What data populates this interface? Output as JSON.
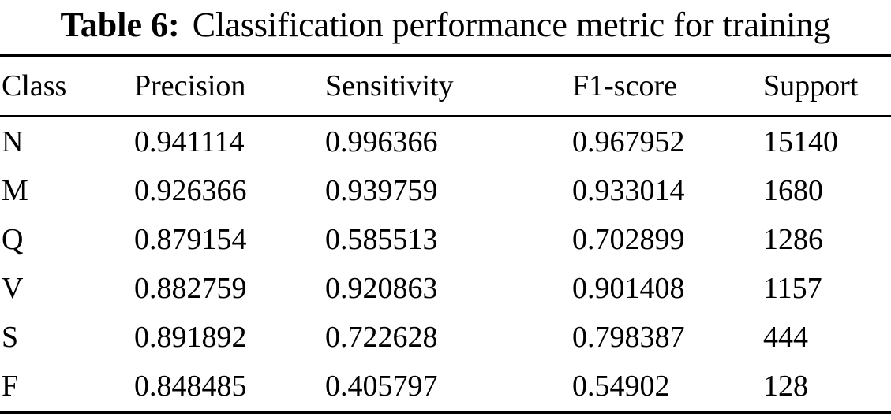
{
  "caption": {
    "label": "Table 6:",
    "text": "Classification performance metric for training"
  },
  "table": {
    "columns": [
      "Class",
      "Precision",
      "Sensitivity",
      "F1-score",
      "Support"
    ],
    "rows": [
      [
        "N",
        "0.941114",
        "0.996366",
        "0.967952",
        "15140"
      ],
      [
        "M",
        "0.926366",
        "0.939759",
        "0.933014",
        "1680"
      ],
      [
        "Q",
        "0.879154",
        "0.585513",
        "0.702899",
        "1286"
      ],
      [
        "V",
        "0.882759",
        "0.920863",
        "0.901408",
        "1157"
      ],
      [
        "S",
        "0.891892",
        "0.722628",
        "0.798387",
        "444"
      ],
      [
        "F",
        "0.848485",
        "0.405797",
        "0.54902",
        "128"
      ]
    ]
  },
  "colors": {
    "text": "#000000",
    "background": "#ffffff",
    "rule": "#000000"
  }
}
